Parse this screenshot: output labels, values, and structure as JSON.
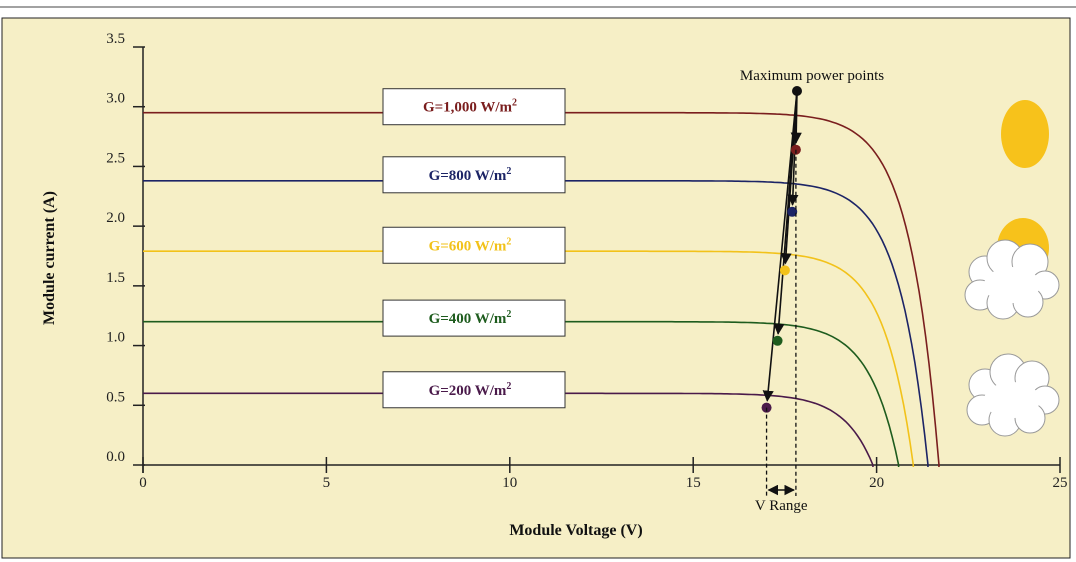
{
  "chart_data": {
    "type": "line",
    "title": "",
    "xlabel": "Module Voltage (V)",
    "ylabel": "Module current (A)",
    "xlim": [
      0,
      25
    ],
    "ylim": [
      0,
      3.5
    ],
    "x_ticks": [
      "0",
      "5",
      "10",
      "15",
      "20",
      "25"
    ],
    "y_ticks": [
      "0.0",
      "0.5",
      "1.0",
      "1.5",
      "2.0",
      "2.5",
      "3.0",
      "3.5"
    ],
    "grid": false,
    "series": [
      {
        "name": "G=1,000 W/m²",
        "label_main": "G=1,000 W/m",
        "isc": 2.95,
        "voc": 21.7,
        "mpp": [
          17.8,
          2.64
        ],
        "color": "#7a1e1e",
        "label_y": 3.0
      },
      {
        "name": "G=800 W/m²",
        "label_main": "G=800 W/m",
        "isc": 2.38,
        "voc": 21.4,
        "mpp": [
          17.7,
          2.12
        ],
        "color": "#1c2466",
        "label_y": 2.43
      },
      {
        "name": "G=600 W/m²",
        "label_main": "G=600 W/m",
        "isc": 1.79,
        "voc": 21.0,
        "mpp": [
          17.5,
          1.63
        ],
        "color": "#f2c21a",
        "label_y": 1.84
      },
      {
        "name": "G=400 W/m²",
        "label_main": "G=400 W/m",
        "isc": 1.2,
        "voc": 20.6,
        "mpp": [
          17.3,
          1.04
        ],
        "color": "#1e5c1e",
        "label_y": 1.23
      },
      {
        "name": "G=200 W/m²",
        "label_main": "G=200 W/m",
        "isc": 0.6,
        "voc": 19.9,
        "mpp": [
          17.0,
          0.48
        ],
        "color": "#4a1a4a",
        "label_y": 0.63
      }
    ],
    "annotations": {
      "mpp_label": "Maximum power points",
      "v_range_label": "V Range",
      "v_range": [
        17.0,
        17.8
      ]
    },
    "superscript": "2"
  },
  "colors": {
    "background": "#f6efc6",
    "axis": "#222222",
    "sun": "#f7c21b",
    "cloud": "#ffffff"
  },
  "icons": [
    "sun-icon",
    "sun-behind-cloud-icon",
    "cloud-icon"
  ]
}
